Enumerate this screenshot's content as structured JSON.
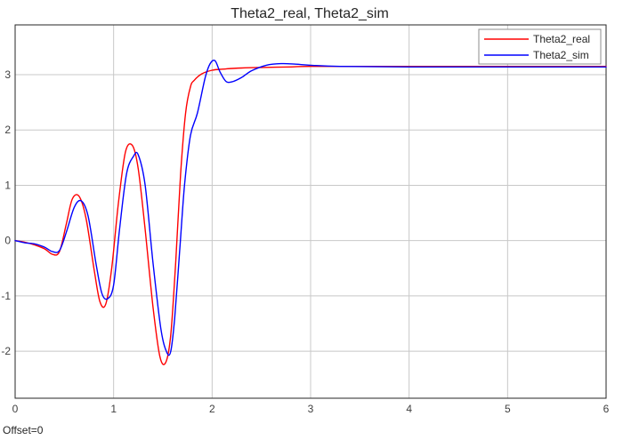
{
  "chart_data": {
    "type": "line",
    "title": "Theta2_real, Theta2_sim",
    "xlabel": "",
    "ylabel": "",
    "xlim": [
      0,
      6
    ],
    "ylim": [
      -2.85,
      3.9
    ],
    "grid": true,
    "legend_position": "top-right",
    "footer": "Offset=0",
    "x_ticks": [
      0,
      1,
      2,
      3,
      4,
      5,
      6
    ],
    "y_ticks": [
      -2,
      -1,
      0,
      1,
      2,
      3
    ],
    "series": [
      {
        "name": "Theta2_real",
        "color": "#ff0000",
        "x": [
          0,
          0.1,
          0.2,
          0.3,
          0.38,
          0.45,
          0.52,
          0.58,
          0.65,
          0.72,
          0.8,
          0.86,
          0.92,
          0.98,
          1.05,
          1.12,
          1.19,
          1.25,
          1.32,
          1.4,
          1.47,
          1.53,
          1.58,
          1.63,
          1.68,
          1.73,
          1.78,
          1.82,
          1.9,
          2.0,
          2.1,
          2.3,
          2.5,
          2.8,
          3.0,
          4.0,
          5.0,
          6.0
        ],
        "y": [
          0,
          -0.03,
          -0.08,
          -0.15,
          -0.25,
          -0.2,
          0.3,
          0.75,
          0.8,
          0.4,
          -0.5,
          -1.1,
          -1.15,
          -0.5,
          0.7,
          1.6,
          1.72,
          1.3,
          0.2,
          -1.2,
          -2.1,
          -2.2,
          -1.7,
          -0.4,
          1.2,
          2.3,
          2.78,
          2.9,
          3.02,
          3.08,
          3.1,
          3.12,
          3.13,
          3.14,
          3.15,
          3.15,
          3.15,
          3.15
        ]
      },
      {
        "name": "Theta2_sim",
        "color": "#0000ff",
        "x": [
          0,
          0.1,
          0.2,
          0.3,
          0.38,
          0.45,
          0.52,
          0.6,
          0.67,
          0.74,
          0.82,
          0.88,
          0.94,
          1.0,
          1.06,
          1.13,
          1.2,
          1.25,
          1.32,
          1.4,
          1.48,
          1.54,
          1.58,
          1.62,
          1.67,
          1.72,
          1.78,
          1.85,
          1.93,
          1.98,
          2.03,
          2.08,
          2.14,
          2.2,
          2.3,
          2.4,
          2.55,
          2.7,
          2.85,
          3.0,
          3.3,
          4.0,
          5.0,
          6.0
        ],
        "y": [
          0,
          -0.04,
          -0.06,
          -0.12,
          -0.2,
          -0.18,
          0.15,
          0.6,
          0.72,
          0.45,
          -0.4,
          -0.95,
          -1.05,
          -0.8,
          0.2,
          1.2,
          1.52,
          1.55,
          1.0,
          -0.4,
          -1.6,
          -2.02,
          -2.0,
          -1.4,
          -0.2,
          1.0,
          1.9,
          2.3,
          2.95,
          3.2,
          3.25,
          3.05,
          2.88,
          2.87,
          2.95,
          3.07,
          3.17,
          3.2,
          3.19,
          3.17,
          3.15,
          3.14,
          3.14,
          3.14
        ]
      }
    ]
  }
}
